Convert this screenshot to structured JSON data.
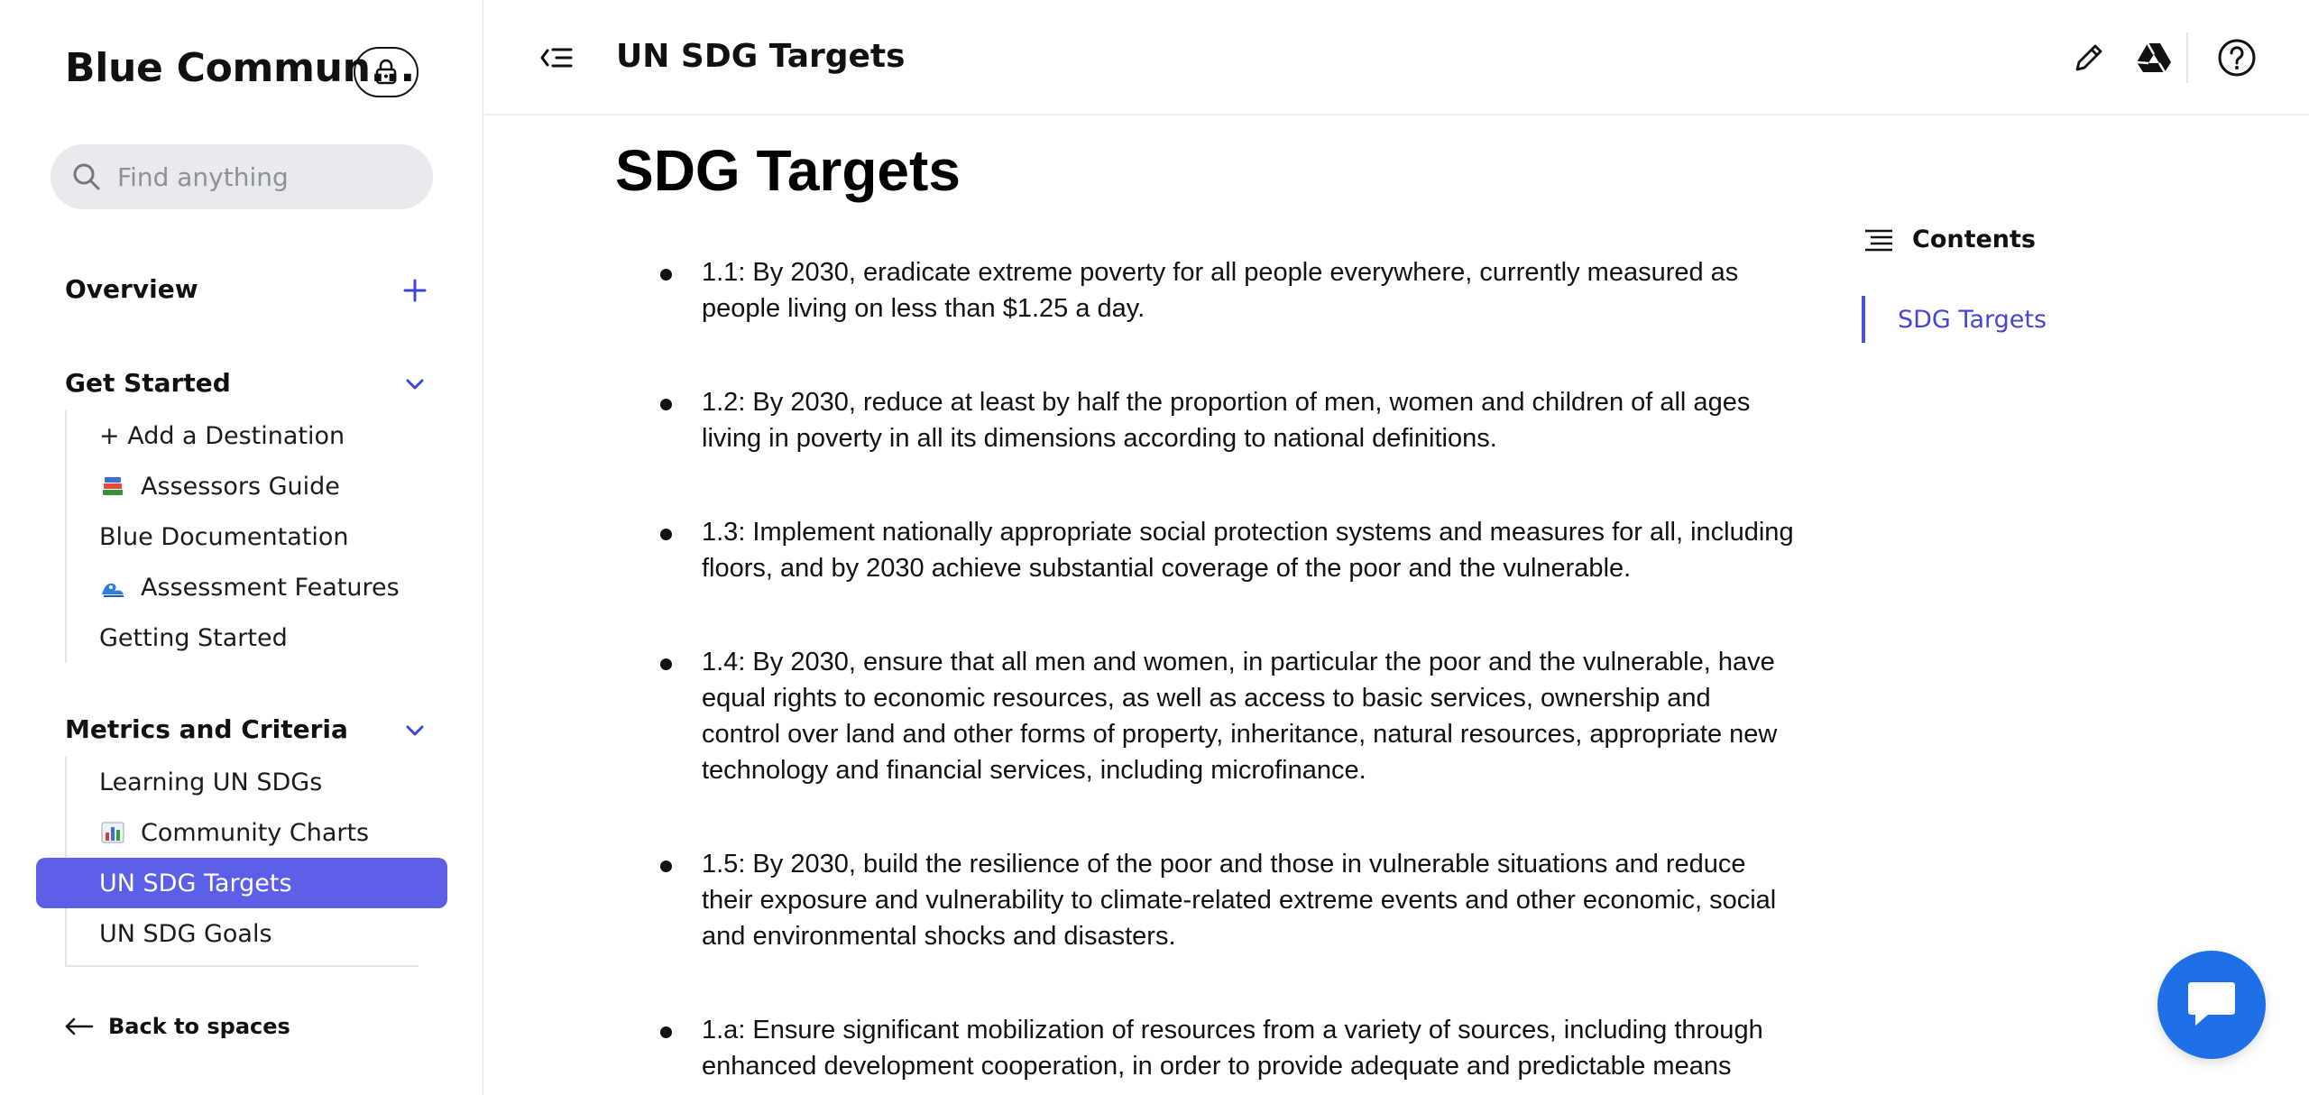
{
  "sidebar": {
    "space_title": "Blue Commun...",
    "search_placeholder": "Find anything",
    "sections": [
      {
        "title": "Overview"
      },
      {
        "title": "Get Started",
        "items": [
          {
            "label": "+ Add a Destination"
          },
          {
            "label": "Assessors Guide",
            "icon": "books-emoji"
          },
          {
            "label": "Blue Documentation"
          },
          {
            "label": "Assessment Features",
            "icon": "wave-emoji"
          },
          {
            "label": "Getting Started"
          }
        ]
      },
      {
        "title": "Metrics and Criteria",
        "items": [
          {
            "label": "Learning UN SDGs"
          },
          {
            "label": "Community Charts",
            "icon": "bar-chart-emoji"
          },
          {
            "label": "UN SDG Targets",
            "active": true
          },
          {
            "label": "UN SDG Goals"
          }
        ]
      }
    ],
    "back_label": "Back to spaces"
  },
  "header": {
    "page_title": "UN SDG Targets",
    "icons": [
      "collapse-sidebar-icon",
      "edit-icon",
      "drive-icon",
      "help-icon"
    ]
  },
  "content": {
    "title": "SDG Targets",
    "targets": [
      "1.1: By 2030, eradicate extreme poverty for all people everywhere, currently measured as people living on less than $1.25 a day.",
      "1.2: By 2030, reduce at least by half the proportion of men, women and children of all ages living in poverty in all its dimensions according to national definitions.",
      "1.3: Implement nationally appropriate social protection systems and measures for all, including floors, and by 2030 achieve substantial coverage of the poor and the vulnerable.",
      "1.4: By 2030, ensure that all men and women, in particular the poor and the vulnerable, have equal rights to economic resources, as well as access to basic services, ownership and control over land and other forms of property, inheritance, natural resources, appropriate new technology and financial services, including microfinance.",
      "1.5: By 2030, build the resilience of the poor and those in vulnerable situations and reduce their exposure and vulnerability to climate-related extreme events and other economic, social and environmental shocks and disasters.",
      "1.a: Ensure significant mobilization of resources from a variety of sources, including through enhanced development cooperation, in order to provide adequate and predictable means"
    ]
  },
  "toc": {
    "heading": "Contents",
    "links": [
      "SDG Targets"
    ]
  },
  "colors": {
    "accent": "#5b5fe6",
    "toc_link": "#4646d6",
    "chat": "#1f6fe6",
    "search_bg": "#e9eaee"
  }
}
